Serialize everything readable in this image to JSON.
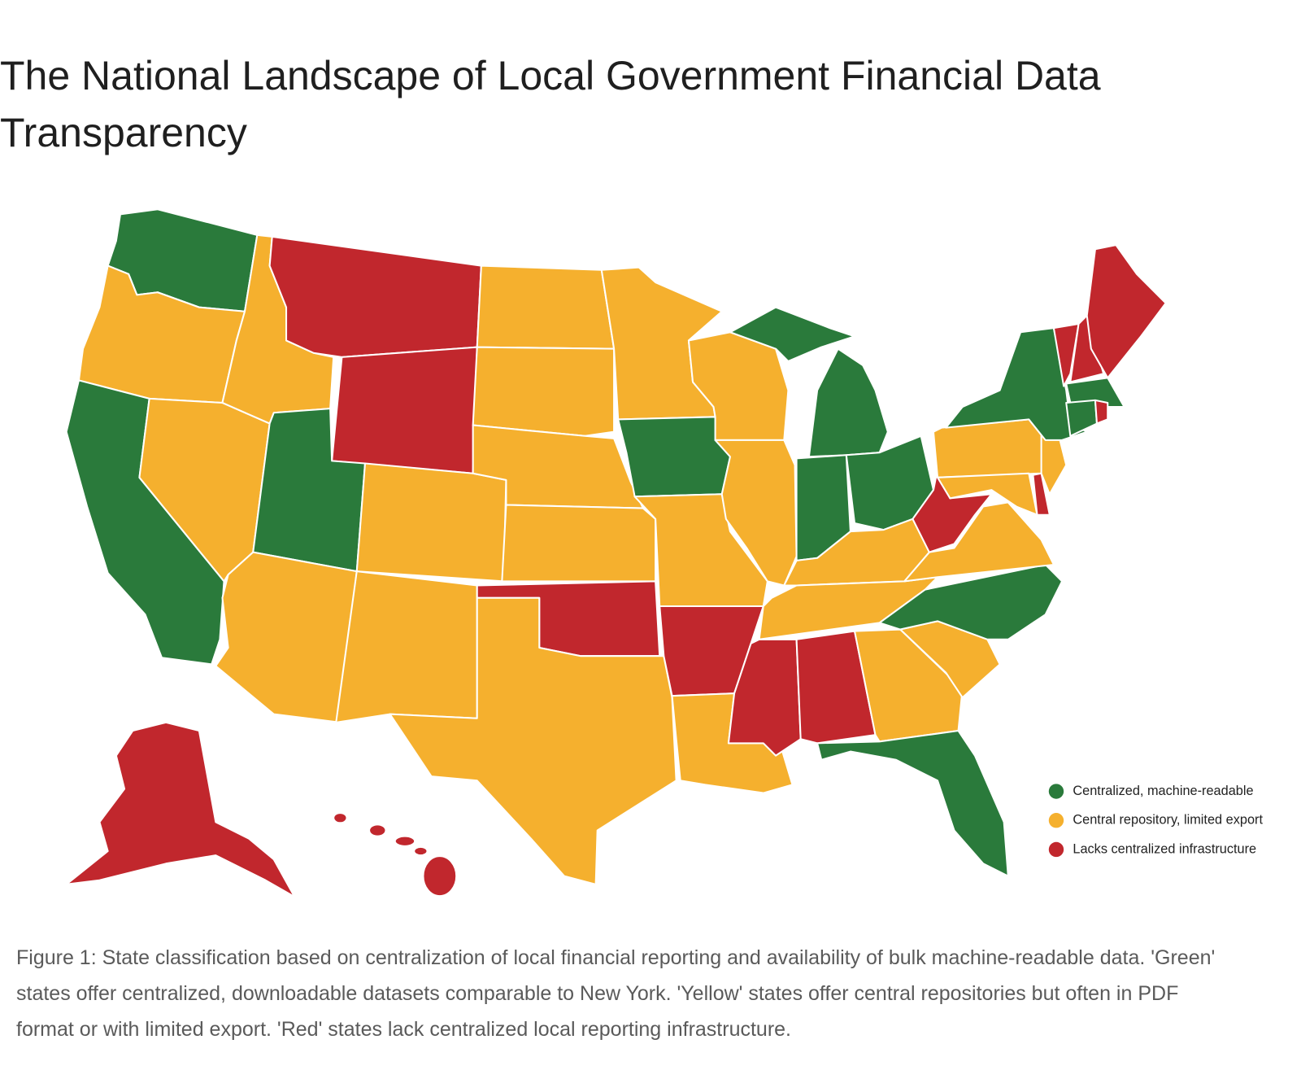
{
  "title": "The National Landscape of Local Government Financial Data Transparency",
  "legend": {
    "items": [
      {
        "label": "Centralized, machine-readable",
        "color": "#2a7a3b"
      },
      {
        "label": "Central repository, limited export",
        "color": "#f5b02e"
      },
      {
        "label": "Lacks centralized infrastructure",
        "color": "#c1272d"
      }
    ]
  },
  "caption": "Figure 1: State classification based on centralization of local financial reporting and availability of bulk machine-readable data. 'Green' states offer centralized, downloadable datasets comparable to New York. 'Yellow' states offer central repositories but often in PDF format or with limited export. 'Red' states lack centralized local reporting infrastructure."
}
